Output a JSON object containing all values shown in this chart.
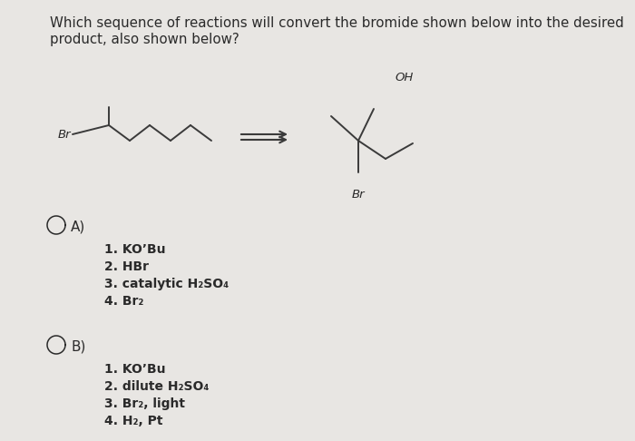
{
  "background_color": "#e8e6e3",
  "title_line1": "Which sequence of reactions will convert the bromide shown below into the desired",
  "title_line2": "product, also shown below?",
  "title_fontsize": 10.8,
  "title_color": "#2a2a2a",
  "option_A_label": "A)",
  "option_B_label": "B)",
  "option_A_steps": [
    "1. KOʼBu",
    "2. HBr",
    "3. catalytic H₂SO₄",
    "4. Br₂"
  ],
  "option_B_steps": [
    "1. KOʼBu",
    "2. dilute H₂SO₄",
    "3. Br₂, light",
    "4. H₂, Pt"
  ],
  "text_fontsize": 10.0,
  "label_fontsize": 11.0,
  "text_color": "#2a2a2a",
  "molecule_color": "#3a3a3a",
  "br_label_left": "Br",
  "br_label_right": "Br",
  "oh_label": "OH"
}
